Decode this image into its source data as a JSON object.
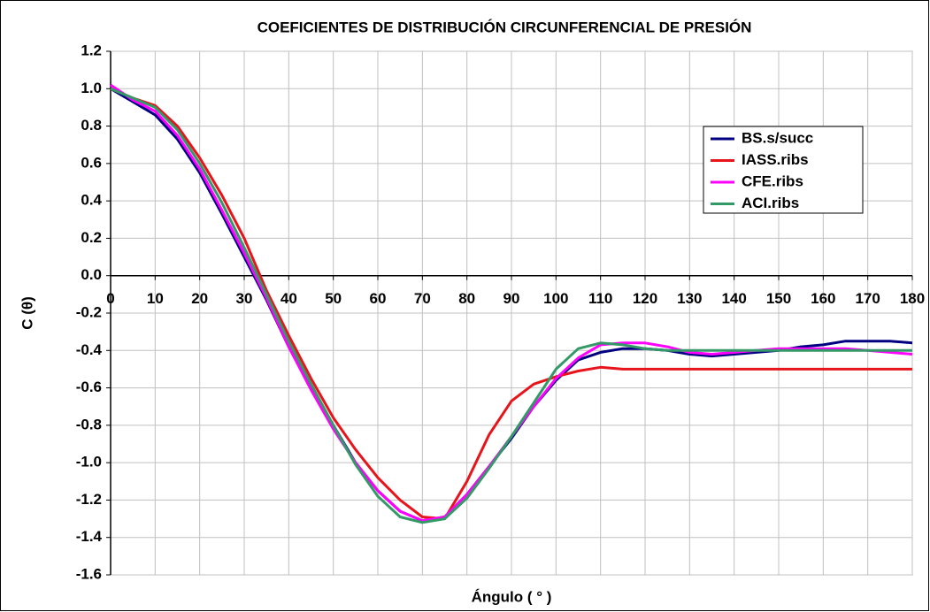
{
  "chart_data": {
    "type": "line",
    "title": "COEFICIENTES DE DISTRIBUCIÓN CIRCUNFERENCIAL DE PRESIÓN",
    "x_label": "Ángulo ( ° )",
    "y_label": "C (θ)",
    "x": [
      0,
      5,
      10,
      15,
      20,
      25,
      30,
      35,
      40,
      45,
      50,
      55,
      60,
      65,
      70,
      75,
      80,
      85,
      90,
      95,
      100,
      105,
      110,
      115,
      120,
      125,
      130,
      135,
      140,
      145,
      150,
      155,
      160,
      165,
      170,
      175,
      180
    ],
    "series": [
      {
        "name": "BS.s/succ",
        "color": "#000080",
        "values": [
          1.0,
          0.93,
          0.86,
          0.73,
          0.55,
          0.33,
          0.1,
          -0.13,
          -0.38,
          -0.6,
          -0.8,
          -1.0,
          -1.15,
          -1.26,
          -1.31,
          -1.29,
          -1.17,
          -1.02,
          -0.87,
          -0.7,
          -0.56,
          -0.45,
          -0.41,
          -0.39,
          -0.39,
          -0.4,
          -0.42,
          -0.43,
          -0.42,
          -0.41,
          -0.4,
          -0.38,
          -0.37,
          -0.35,
          -0.35,
          -0.35,
          -0.36
        ]
      },
      {
        "name": "IASS.ribs",
        "color": "#e8141b",
        "values": [
          1.0,
          0.95,
          0.91,
          0.8,
          0.63,
          0.43,
          0.2,
          -0.08,
          -0.32,
          -0.55,
          -0.76,
          -0.93,
          -1.08,
          -1.2,
          -1.29,
          -1.3,
          -1.1,
          -0.85,
          -0.67,
          -0.58,
          -0.54,
          -0.51,
          -0.49,
          -0.5,
          -0.5,
          -0.5,
          -0.5,
          -0.5,
          -0.5,
          -0.5,
          -0.5,
          -0.5,
          -0.5,
          -0.5,
          -0.5,
          -0.5,
          -0.5
        ]
      },
      {
        "name": "CFE.ribs",
        "color": "#ff00ff",
        "values": [
          1.02,
          0.94,
          0.88,
          0.75,
          0.57,
          0.35,
          0.12,
          -0.12,
          -0.38,
          -0.61,
          -0.82,
          -1.0,
          -1.15,
          -1.26,
          -1.31,
          -1.29,
          -1.17,
          -1.02,
          -0.86,
          -0.7,
          -0.55,
          -0.44,
          -0.37,
          -0.36,
          -0.36,
          -0.38,
          -0.41,
          -0.42,
          -0.41,
          -0.4,
          -0.39,
          -0.39,
          -0.39,
          -0.39,
          -0.4,
          -0.41,
          -0.42
        ]
      },
      {
        "name": "ACI.ribs",
        "color": "#339966",
        "values": [
          1.0,
          0.95,
          0.9,
          0.78,
          0.6,
          0.39,
          0.15,
          -0.1,
          -0.35,
          -0.58,
          -0.8,
          -1.01,
          -1.18,
          -1.29,
          -1.32,
          -1.3,
          -1.19,
          -1.03,
          -0.86,
          -0.68,
          -0.5,
          -0.39,
          -0.36,
          -0.37,
          -0.39,
          -0.4,
          -0.4,
          -0.4,
          -0.4,
          -0.4,
          -0.4,
          -0.4,
          -0.4,
          -0.4,
          -0.4,
          -0.4,
          -0.4
        ]
      }
    ],
    "xlim": [
      0,
      180
    ],
    "xticks": [
      0,
      10,
      20,
      30,
      40,
      50,
      60,
      70,
      80,
      90,
      100,
      110,
      120,
      130,
      140,
      150,
      160,
      170,
      180
    ],
    "ylim": [
      -1.6,
      1.2
    ],
    "yticks": [
      1.2,
      {
        "value": 1,
        "label": "1.0"
      },
      0.8,
      0.6,
      0.4,
      0.2,
      {
        "value": 0,
        "label": "0.0"
      },
      -0.2,
      -0.4,
      -0.6,
      -0.8,
      {
        "value": -1,
        "label": "-1.0"
      },
      -1.2,
      -1.4,
      -1.6
    ],
    "grid": true,
    "legend": "upper right"
  }
}
